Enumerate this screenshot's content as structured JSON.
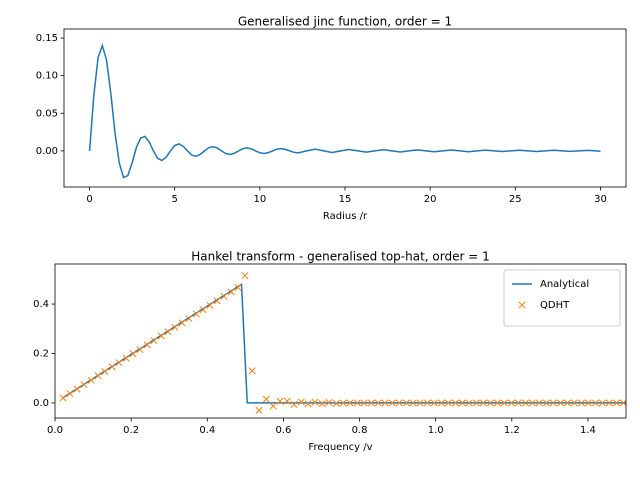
{
  "chart_data": [
    {
      "type": "line",
      "title": "Generalised jinc function, order = 1",
      "xlabel": "Radius /r",
      "xlim": [
        -1.5,
        31.5
      ],
      "ylim": [
        -0.048,
        0.162
      ],
      "xticks": [
        0,
        5,
        10,
        15,
        20,
        25,
        30
      ],
      "yticks": [
        {
          "value": 0,
          "label": "0.00"
        },
        {
          "value": 0.05,
          "label": "0.05"
        },
        {
          "value": 0.1,
          "label": "0.10"
        },
        {
          "value": 0.15,
          "label": "0.15"
        }
      ],
      "grid": false,
      "series": [
        {
          "color": "#1f77b4",
          "linestyle": "-",
          "x": [
            0,
            0.25,
            0.5,
            0.75,
            1,
            1.25,
            1.5,
            1.75,
            2,
            2.25,
            2.5,
            2.75,
            3,
            3.25,
            3.5,
            3.75,
            4,
            4.25,
            4.5,
            4.75,
            5,
            5.25,
            5.5,
            5.75,
            6,
            6.25,
            6.5,
            6.75,
            7,
            7.25,
            7.5,
            7.75,
            8,
            8.25,
            8.5,
            8.75,
            9,
            9.25,
            9.5,
            9.75,
            10,
            10.25,
            10.5,
            10.75,
            11,
            11.25,
            11.5,
            11.75,
            12,
            12.25,
            12.75,
            13.25,
            13.75,
            14.25,
            14.75,
            15.25,
            15.75,
            16.25,
            16.75,
            17.25,
            17.75,
            18.25,
            18.75,
            19.25,
            19.75,
            20.25,
            20.75,
            21.25,
            21.75,
            22.25,
            22.75,
            23.25,
            23.75,
            24.25,
            24.75,
            25.25,
            25.75,
            26.25,
            26.75,
            27.25,
            27.75,
            28.25,
            28.75,
            29.25,
            29.75,
            30
          ],
          "values": [
            0,
            0.073,
            0.124,
            0.14,
            0.1205,
            0.0763,
            0.023,
            -0.0166,
            -0.0354,
            -0.0327,
            -0.0159,
            0.0045,
            0.017,
            0.0193,
            0.0121,
            0,
            -0.0099,
            -0.0128,
            -0.0083,
            0,
            0.0071,
            0.0093,
            0.0061,
            0,
            -0.0054,
            -0.0072,
            -0.0048,
            0,
            0.0043,
            0.0057,
            0.0039,
            0,
            -0.0035,
            -0.0047,
            -0.0032,
            0,
            0.0029,
            0.004,
            0.0027,
            0,
            -0.0025,
            -0.0034,
            -0.0023,
            0,
            0.0022,
            0.003,
            0.002,
            0,
            -0.0019,
            -0.0026,
            0,
            0.0023,
            0,
            -0.0021,
            0,
            0.0019,
            0,
            -0.0017,
            0,
            0.0016,
            0,
            -0.0014,
            0,
            0.0013,
            0,
            -0.0012,
            0,
            0.0011,
            0,
            -0.0011,
            0,
            0.001,
            0,
            -0.0009,
            0,
            0.0009,
            0,
            -0.0008,
            0,
            0.0008,
            0,
            -0.0007,
            0,
            0.0007,
            0,
            -0.0005
          ]
        }
      ]
    },
    {
      "type": "line",
      "title": "Hankel transform - generalised top-hat, order = 1",
      "xlabel": "Frequency /v",
      "xlim": [
        0,
        1.5
      ],
      "ylim": [
        -0.061,
        0.562
      ],
      "xticks": [
        {
          "value": 0,
          "label": "0.0"
        },
        0.2,
        0.4,
        0.6,
        0.8,
        {
          "value": 1,
          "label": "1.0"
        },
        1.2,
        1.4
      ],
      "yticks": [
        {
          "value": 0,
          "label": "0.0"
        },
        0.2,
        0.4
      ],
      "grid": false,
      "legend": "upper right",
      "series": [
        {
          "name": "Analytical",
          "color": "#1f77b4",
          "linestyle": "-",
          "x": [
            0.02,
            0.49,
            0.505,
            1.5
          ],
          "values": [
            0.02,
            0.48,
            0,
            0
          ]
        },
        {
          "name": "QDHT",
          "color": "#ff7f0e",
          "marker": "x",
          "x": [
            0.021,
            0.039,
            0.058,
            0.076,
            0.095,
            0.113,
            0.131,
            0.15,
            0.168,
            0.187,
            0.205,
            0.223,
            0.242,
            0.26,
            0.279,
            0.297,
            0.315,
            0.334,
            0.352,
            0.371,
            0.389,
            0.407,
            0.426,
            0.444,
            0.463,
            0.481,
            0.499,
            0.518,
            0.536,
            0.555,
            0.573,
            0.591,
            0.61,
            0.628,
            0.647,
            0.665,
            0.683,
            0.702,
            0.72,
            0.739,
            0.757,
            0.775,
            0.794,
            0.812,
            0.831,
            0.849,
            0.867,
            0.886,
            0.904,
            0.923,
            0.941,
            0.959,
            0.978,
            0.996,
            1.015,
            1.033,
            1.052,
            1.07,
            1.088,
            1.107,
            1.125,
            1.144,
            1.162,
            1.18,
            1.199,
            1.217,
            1.236,
            1.254,
            1.272,
            1.291,
            1.309,
            1.328,
            1.346,
            1.364,
            1.383,
            1.401,
            1.42,
            1.438,
            1.456,
            1.475,
            1.493
          ],
          "values": [
            0.02,
            0.038,
            0.056,
            0.074,
            0.092,
            0.11,
            0.127,
            0.146,
            0.163,
            0.181,
            0.199,
            0.216,
            0.235,
            0.252,
            0.271,
            0.288,
            0.306,
            0.324,
            0.341,
            0.36,
            0.377,
            0.395,
            0.413,
            0.431,
            0.449,
            0.467,
            0.515,
            0.13,
            -0.03,
            0.015,
            -0.012,
            0.007,
            0.007,
            -0.006,
            0.004,
            -0.004,
            0.003,
            -0.003,
            0.002,
            -0.002,
            0,
            0,
            0,
            0,
            0,
            0,
            0,
            0,
            0,
            0,
            0,
            0,
            0,
            0,
            0,
            0,
            0,
            0,
            0,
            0,
            0,
            0,
            0,
            0,
            0,
            0,
            0,
            0,
            0,
            0,
            0,
            0,
            0,
            0,
            0,
            0,
            0,
            0,
            0,
            0,
            0
          ]
        }
      ]
    }
  ]
}
